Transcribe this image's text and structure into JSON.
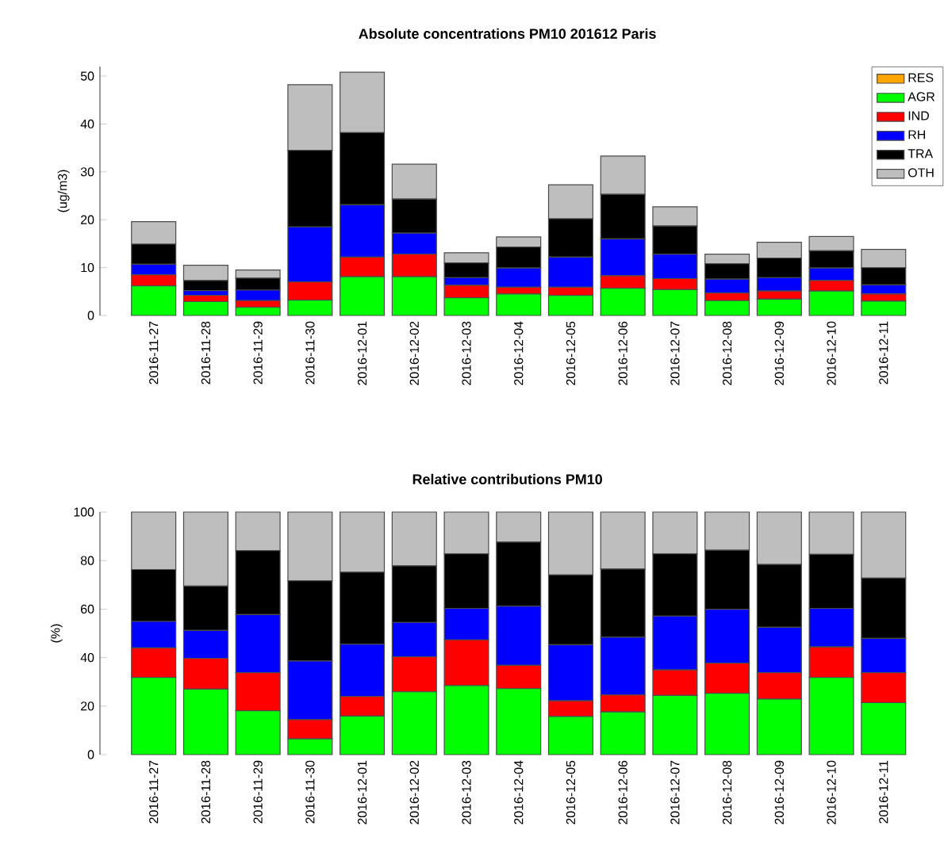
{
  "chart_data": [
    {
      "type": "bar",
      "title": "Absolute concentrations PM10 201612 Paris",
      "ylabel": "(ug/m3)",
      "stacked": true,
      "legend": "top right",
      "categories": [
        "2016-11-27",
        "2016-11-28",
        "2016-11-29",
        "2016-11-30",
        "2016-12-01",
        "2016-12-02",
        "2016-12-03",
        "2016-12-04",
        "2016-12-05",
        "2016-12-06",
        "2016-12-07",
        "2016-12-08",
        "2016-12-09",
        "2016-12-10",
        "2016-12-11"
      ],
      "ylim": [
        0,
        52
      ],
      "yticks": [
        0,
        10,
        20,
        30,
        40,
        50
      ],
      "series": [
        {
          "name": "RES",
          "color": "#ffa500",
          "values": [
            0,
            0,
            0,
            0,
            0,
            0,
            0,
            0,
            0,
            0,
            0,
            0,
            0,
            0,
            0
          ]
        },
        {
          "name": "AGR",
          "color": "#00ff00",
          "values": [
            6.2,
            2.9,
            1.7,
            3.2,
            8.1,
            8.1,
            3.7,
            4.5,
            4.2,
            5.7,
            5.4,
            3.1,
            3.4,
            5.1,
            3.0
          ]
        },
        {
          "name": "IND",
          "color": "#ff0000",
          "values": [
            2.3,
            1.3,
            1.4,
            3.8,
            4.1,
            4.7,
            2.6,
            1.4,
            1.7,
            2.6,
            2.3,
            1.6,
            1.7,
            2.2,
            1.5
          ]
        },
        {
          "name": "RH",
          "color": "#0000ff",
          "values": [
            2.2,
            1.0,
            2.2,
            11.5,
            10.9,
            4.4,
            1.6,
            4.0,
            6.3,
            7.7,
            5.1,
            2.9,
            2.8,
            2.6,
            1.9
          ]
        },
        {
          "name": "TRA",
          "color": "#000000",
          "values": [
            4.2,
            2.1,
            2.5,
            16.0,
            15.1,
            7.1,
            3.1,
            4.4,
            8.0,
            9.3,
            5.9,
            3.2,
            4.1,
            3.6,
            3.6
          ]
        },
        {
          "name": "OTH",
          "color": "#bebebe",
          "values": [
            4.7,
            3.2,
            1.7,
            13.7,
            12.6,
            7.3,
            2.1,
            2.1,
            7.1,
            8.0,
            4.0,
            2.0,
            3.3,
            3.0,
            3.8
          ]
        }
      ]
    },
    {
      "type": "bar",
      "title": "Relative contributions PM10",
      "ylabel": "(%)",
      "stacked": true,
      "categories": [
        "2016-11-27",
        "2016-11-28",
        "2016-11-29",
        "2016-11-30",
        "2016-12-01",
        "2016-12-02",
        "2016-12-03",
        "2016-12-04",
        "2016-12-05",
        "2016-12-06",
        "2016-12-07",
        "2016-12-08",
        "2016-12-09",
        "2016-12-10",
        "2016-12-11"
      ],
      "ylim": [
        0,
        100
      ],
      "yticks": [
        0,
        20,
        40,
        60,
        80,
        100
      ],
      "series": [
        {
          "color": "#00ff00",
          "values": [
            31.8,
            27.0,
            18.1,
            6.5,
            15.9,
            25.9,
            28.5,
            27.2,
            15.7,
            17.6,
            24.4,
            25.3,
            22.9,
            31.8,
            21.4
          ]
        },
        {
          "color": "#ff0000",
          "values": [
            12.2,
            12.7,
            15.7,
            7.9,
            8.1,
            14.4,
            18.8,
            9.6,
            6.5,
            7.0,
            10.5,
            12.4,
            10.9,
            12.6,
            12.4
          ]
        },
        {
          "color": "#0000ff",
          "values": [
            10.9,
            11.5,
            23.9,
            24.2,
            21.5,
            14.2,
            13.0,
            24.4,
            23.1,
            23.8,
            22.2,
            22.2,
            18.7,
            15.9,
            14.1
          ]
        },
        {
          "color": "#000000",
          "values": [
            21.4,
            18.3,
            26.4,
            33.1,
            29.7,
            23.3,
            22.5,
            26.4,
            28.8,
            28.1,
            25.7,
            24.4,
            25.9,
            22.3,
            24.9
          ]
        },
        {
          "color": "#bebebe",
          "values": [
            23.7,
            30.5,
            15.9,
            28.3,
            24.8,
            22.2,
            17.2,
            12.4,
            25.9,
            23.5,
            17.2,
            15.7,
            21.6,
            17.4,
            27.2
          ]
        }
      ]
    }
  ]
}
